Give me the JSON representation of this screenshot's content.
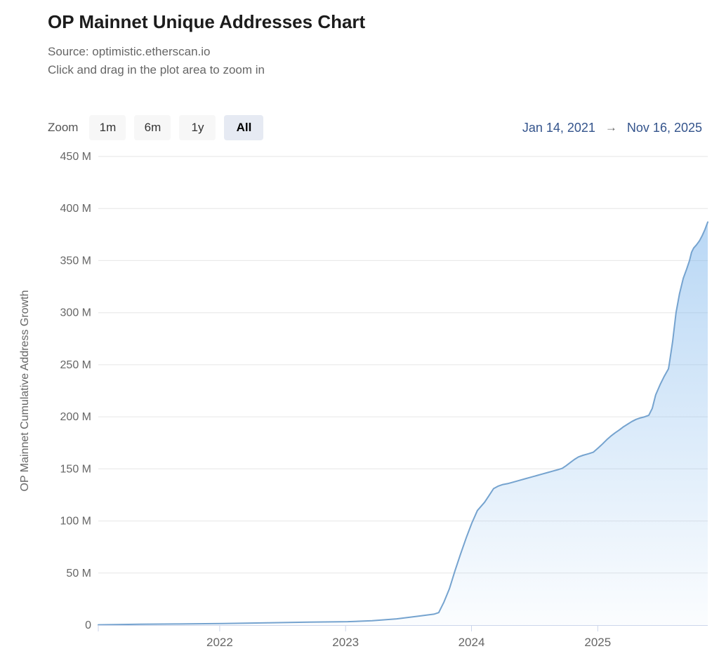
{
  "header": {
    "title": "OP Mainnet Unique Addresses Chart",
    "source": "Source: optimistic.etherscan.io",
    "hint": "Click and drag in the plot area to zoom in"
  },
  "toolbar": {
    "zoom_label": "Zoom",
    "buttons": [
      {
        "label": "1m",
        "selected": false
      },
      {
        "label": "6m",
        "selected": false
      },
      {
        "label": "1y",
        "selected": false
      },
      {
        "label": "All",
        "selected": true
      }
    ],
    "range_start": "Jan 14, 2021",
    "range_arrow": "→",
    "range_end": "Nov 16, 2025"
  },
  "colors": {
    "line": "#75a3cf",
    "fill_top": "rgba(124,181,236,0.55)",
    "fill_bottom": "rgba(124,181,236,0.03)",
    "gridline": "#e6e6e6",
    "axis_line": "#ccd6eb",
    "axis_label": "#666666",
    "range_text": "#34548c",
    "button_bg": "#f7f7f7",
    "button_selected_bg": "#e6eaf3"
  },
  "chart_data": {
    "type": "area",
    "title": "OP Mainnet Unique Addresses Chart",
    "series_name": "OP Mainnet Cumulative Address Growth",
    "ylabel": "OP Mainnet Cumulative Address Growth",
    "unit": "millions of unique addresses",
    "y_max": 450,
    "grid": true,
    "legend": false,
    "x_range": [
      "2021-01-14",
      "2025-11-16"
    ],
    "y_ticks": [
      {
        "v": 0,
        "label": "0"
      },
      {
        "v": 50,
        "label": "50 M"
      },
      {
        "v": 100,
        "label": "100 M"
      },
      {
        "v": 150,
        "label": "150 M"
      },
      {
        "v": 200,
        "label": "200 M"
      },
      {
        "v": 250,
        "label": "250 M"
      },
      {
        "v": 300,
        "label": "300 M"
      },
      {
        "v": 350,
        "label": "350 M"
      },
      {
        "v": 400,
        "label": "400 M"
      },
      {
        "v": 450,
        "label": "450 M"
      }
    ],
    "x_ticks": [
      {
        "date": "2021-01-14",
        "label": ""
      },
      {
        "date": "2022-01-01",
        "label": "2022"
      },
      {
        "date": "2023-01-01",
        "label": "2023"
      },
      {
        "date": "2024-01-01",
        "label": "2024"
      },
      {
        "date": "2025-01-01",
        "label": "2025"
      }
    ],
    "points": [
      [
        "2021-01-14",
        0.3
      ],
      [
        "2021-05-16",
        0.8
      ],
      [
        "2021-08-26",
        1.1
      ],
      [
        "2022-01-11",
        1.5
      ],
      [
        "2022-05-18",
        2.2
      ],
      [
        "2022-09-17",
        2.8
      ],
      [
        "2023-01-07",
        3.3
      ],
      [
        "2023-03-19",
        4.2
      ],
      [
        "2023-05-29",
        6
      ],
      [
        "2023-07-29",
        8.5
      ],
      [
        "2023-09-14",
        10.5
      ],
      [
        "2023-09-28",
        12
      ],
      [
        "2023-10-13",
        22
      ],
      [
        "2023-10-29",
        35
      ],
      [
        "2023-11-14",
        52
      ],
      [
        "2023-11-30",
        68
      ],
      [
        "2023-12-17",
        84
      ],
      [
        "2024-01-02",
        98
      ],
      [
        "2024-01-18",
        110
      ],
      [
        "2024-02-08",
        118
      ],
      [
        "2024-02-20",
        124
      ],
      [
        "2024-03-05",
        131
      ],
      [
        "2024-03-19",
        133.5
      ],
      [
        "2024-04-01",
        135
      ],
      [
        "2024-04-17",
        136
      ],
      [
        "2024-05-03",
        137.5
      ],
      [
        "2024-05-19",
        139
      ],
      [
        "2024-06-05",
        140.5
      ],
      [
        "2024-06-21",
        142
      ],
      [
        "2024-07-07",
        143.5
      ],
      [
        "2024-07-23",
        145
      ],
      [
        "2024-08-09",
        146.5
      ],
      [
        "2024-08-25",
        148
      ],
      [
        "2024-09-10",
        149.5
      ],
      [
        "2024-09-20",
        150.5
      ],
      [
        "2024-10-01",
        153
      ],
      [
        "2024-10-13",
        156
      ],
      [
        "2024-10-25",
        159
      ],
      [
        "2024-11-06",
        161.5
      ],
      [
        "2024-11-19",
        163
      ],
      [
        "2024-12-05",
        164.5
      ],
      [
        "2024-12-19",
        166
      ],
      [
        "2025-01-02",
        170
      ],
      [
        "2025-01-15",
        174
      ],
      [
        "2025-01-27",
        178
      ],
      [
        "2025-02-08",
        181.5
      ],
      [
        "2025-02-20",
        184.5
      ],
      [
        "2025-03-05",
        187.5
      ],
      [
        "2025-03-17",
        190.5
      ],
      [
        "2025-03-29",
        193
      ],
      [
        "2025-04-10",
        195.5
      ],
      [
        "2025-04-22",
        197.5
      ],
      [
        "2025-05-05",
        199
      ],
      [
        "2025-05-17",
        200
      ],
      [
        "2025-05-29",
        201.5
      ],
      [
        "2025-06-08",
        208
      ],
      [
        "2025-06-18",
        221
      ],
      [
        "2025-07-01",
        231
      ],
      [
        "2025-07-13",
        239
      ],
      [
        "2025-07-25",
        246
      ],
      [
        "2025-07-27",
        250
      ],
      [
        "2025-08-06",
        272
      ],
      [
        "2025-08-16",
        300
      ],
      [
        "2025-08-26",
        318
      ],
      [
        "2025-09-06",
        333
      ],
      [
        "2025-09-16",
        342
      ],
      [
        "2025-09-24",
        350
      ],
      [
        "2025-09-30",
        358
      ],
      [
        "2025-10-06",
        362
      ],
      [
        "2025-10-14",
        365
      ],
      [
        "2025-10-23",
        369
      ],
      [
        "2025-10-31",
        374
      ],
      [
        "2025-11-08",
        380
      ],
      [
        "2025-11-16",
        387
      ]
    ]
  }
}
